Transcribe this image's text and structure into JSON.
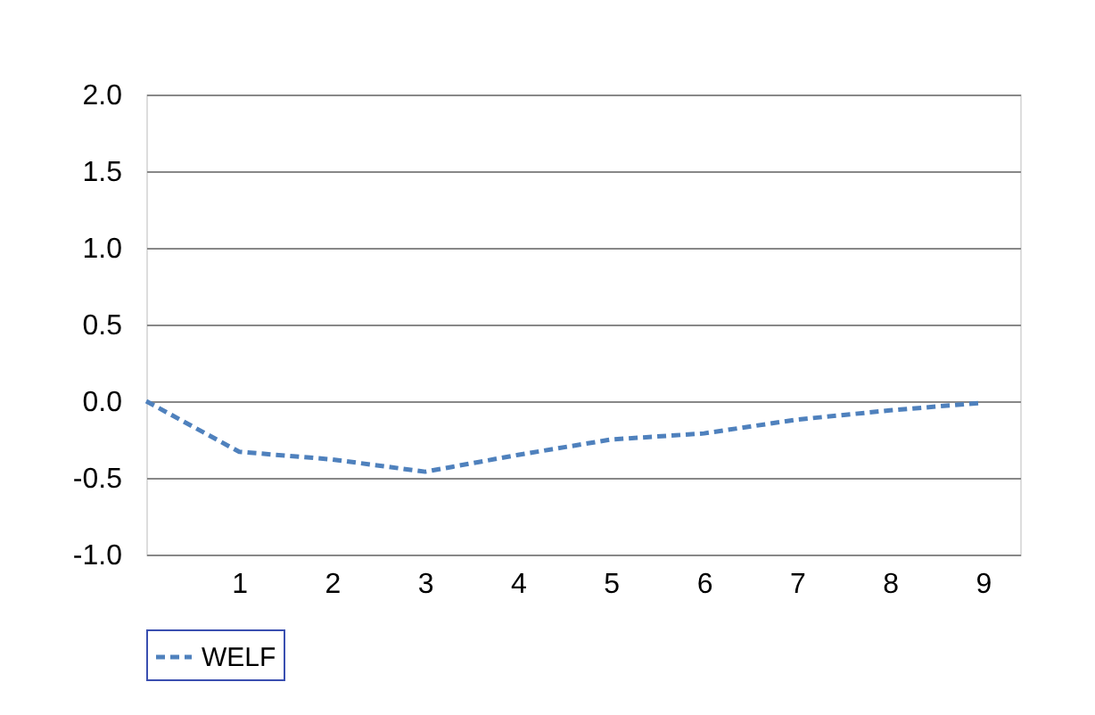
{
  "chart_data": {
    "type": "line",
    "x": [
      0,
      1,
      2,
      3,
      4,
      5,
      6,
      7,
      8,
      9
    ],
    "series": [
      {
        "name": "WELF",
        "color": "#4f81bd",
        "values": [
          0,
          -0.33,
          -0.38,
          -0.46,
          -0.35,
          -0.25,
          -0.21,
          -0.12,
          -0.06,
          -0.01
        ]
      }
    ],
    "xlim": [
      0,
      9.4
    ],
    "xticks": [
      1,
      2,
      3,
      4,
      5,
      6,
      7,
      8,
      9
    ],
    "ylim": [
      -1.0,
      2.0
    ],
    "yticks": [
      {
        "value": -1.0,
        "label": "-1.0"
      },
      {
        "value": -0.5,
        "label": "-0.5"
      },
      {
        "value": 0,
        "label": "0.0"
      },
      {
        "value": 0.5,
        "label": "0.5"
      },
      {
        "value": 1.0,
        "label": "1.0"
      },
      {
        "value": 1.5,
        "label": "1.5"
      },
      {
        "value": 2.0,
        "label": "2.0"
      }
    ],
    "grid": "y",
    "legend": "bottom",
    "line_style": "dashed",
    "marker": "none"
  }
}
